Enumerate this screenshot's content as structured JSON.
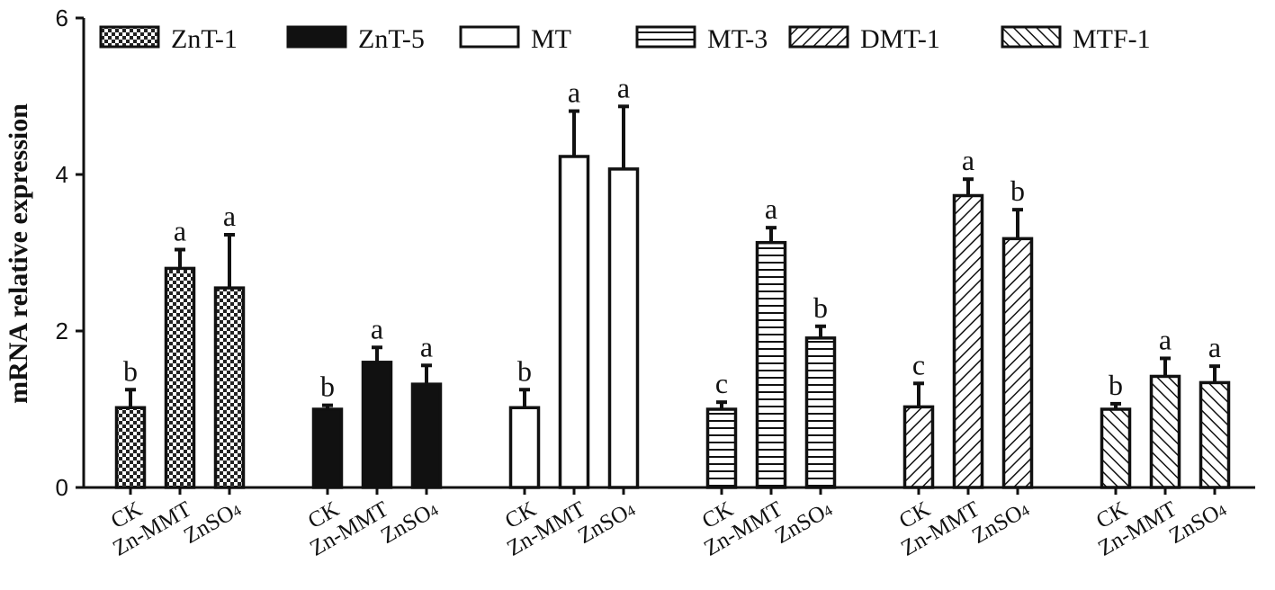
{
  "chart_data": {
    "type": "bar",
    "title": "",
    "xlabel": "",
    "ylabel": "mRNA relative expression",
    "ylim": [
      0,
      6
    ],
    "yticks": [
      "0",
      "2",
      "4",
      "6"
    ],
    "grid": false,
    "legend_position": "top",
    "categories": [
      "CK",
      "Zn-MMT",
      "ZnSO4"
    ],
    "category_labels": [
      {
        "text": "CK",
        "sub": ""
      },
      {
        "text": "Zn-MMT",
        "sub": ""
      },
      {
        "text": "ZnSO",
        "sub": "4"
      }
    ],
    "series": [
      {
        "name": "ZnT-1",
        "pattern": "checker",
        "values": [
          1.02,
          2.8,
          2.55
        ],
        "errors": [
          0.23,
          0.24,
          0.68
        ],
        "labels": [
          "b",
          "a",
          "a"
        ]
      },
      {
        "name": "ZnT-5",
        "pattern": "solid",
        "values": [
          1.0,
          1.6,
          1.32
        ],
        "errors": [
          0.05,
          0.19,
          0.24
        ],
        "labels": [
          "b",
          "a",
          "a"
        ]
      },
      {
        "name": "MT",
        "pattern": "empty",
        "values": [
          1.02,
          4.23,
          4.07
        ],
        "errors": [
          0.23,
          0.58,
          0.8
        ],
        "labels": [
          "b",
          "a",
          "a"
        ]
      },
      {
        "name": "MT-3",
        "pattern": "horizontal",
        "values": [
          1.0,
          3.13,
          1.91
        ],
        "errors": [
          0.09,
          0.19,
          0.15
        ],
        "labels": [
          "c",
          "a",
          "b"
        ]
      },
      {
        "name": "DMT-1",
        "pattern": "diagonal",
        "values": [
          1.03,
          3.73,
          3.18
        ],
        "errors": [
          0.3,
          0.21,
          0.37
        ],
        "labels": [
          "c",
          "a",
          "b"
        ]
      },
      {
        "name": "MTF-1",
        "pattern": "diagonal-back",
        "values": [
          1.0,
          1.42,
          1.34
        ],
        "errors": [
          0.07,
          0.23,
          0.21
        ],
        "labels": [
          "b",
          "a",
          "a"
        ]
      }
    ]
  }
}
